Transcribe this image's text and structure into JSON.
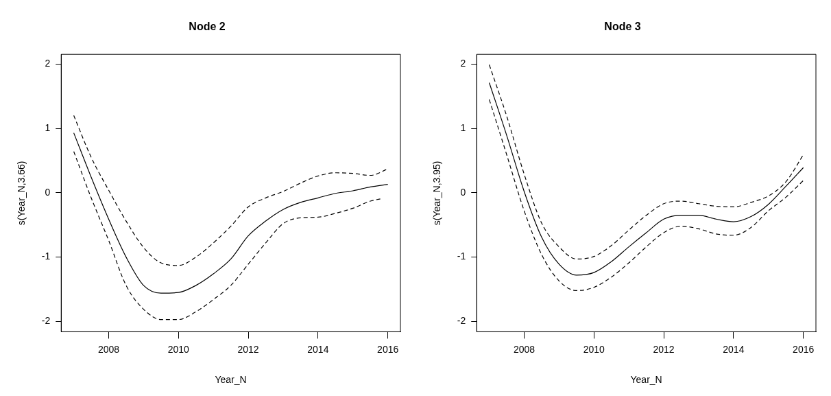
{
  "chart_data": [
    {
      "type": "line",
      "title": "Node 2",
      "xlabel": "Year_N",
      "ylabel": "s(Year_N,3.66)",
      "xlim": [
        2006.64,
        2016.36
      ],
      "ylim": [
        -2.16,
        2.15
      ],
      "xticks": [
        2008,
        2010,
        2012,
        2014,
        2016
      ],
      "yticks": [
        -2,
        -1,
        0,
        1,
        2
      ],
      "grid": false,
      "legend": false,
      "marker": "none",
      "series": [
        {
          "color": "#000000",
          "line_style": "solid",
          "x": [
            2007,
            2007.5,
            2008,
            2008.5,
            2009,
            2009.5,
            2010,
            2010.5,
            2011,
            2011.5,
            2012,
            2012.5,
            2013,
            2013.5,
            2014,
            2014.5,
            2015,
            2015.5,
            2016
          ],
          "values": [
            0.93,
            0.24,
            -0.41,
            -1.0,
            -1.44,
            -1.56,
            -1.55,
            -1.44,
            -1.26,
            -1.03,
            -0.67,
            -0.44,
            -0.26,
            -0.15,
            -0.08,
            -0.01,
            0.03,
            0.09,
            0.13
          ]
        },
        {
          "color": "#000000",
          "line_style": "dashed",
          "x": [
            2007,
            2007.5,
            2008,
            2008.5,
            2009,
            2009.5,
            2010,
            2010.5,
            2011,
            2011.5,
            2012,
            2012.5,
            2013,
            2013.5,
            2014,
            2014.5,
            2015,
            2015.5,
            2016
          ],
          "values": [
            1.2,
            0.55,
            0.04,
            -0.44,
            -0.85,
            -1.09,
            -1.13,
            -1.0,
            -0.78,
            -0.52,
            -0.22,
            -0.08,
            0.02,
            0.15,
            0.26,
            0.31,
            0.3,
            0.27,
            0.37
          ]
        },
        {
          "color": "#000000",
          "line_style": "dashed",
          "x": [
            2007,
            2007.5,
            2008,
            2008.5,
            2009,
            2009.5,
            2010,
            2010.5,
            2011,
            2011.5,
            2012,
            2012.5,
            2013,
            2013.5,
            2014,
            2014.5,
            2015,
            2015.5,
            2015.85
          ],
          "values": [
            0.64,
            -0.08,
            -0.74,
            -1.44,
            -1.81,
            -1.97,
            -1.97,
            -1.85,
            -1.66,
            -1.44,
            -1.11,
            -0.78,
            -0.48,
            -0.39,
            -0.38,
            -0.32,
            -0.24,
            -0.13,
            -0.09
          ]
        }
      ]
    },
    {
      "type": "line",
      "title": "Node 3",
      "xlabel": "Year_N",
      "ylabel": "s(Year_N,3.95)",
      "xlim": [
        2006.64,
        2016.36
      ],
      "ylim": [
        -2.16,
        2.15
      ],
      "xticks": [
        2008,
        2010,
        2012,
        2014,
        2016
      ],
      "yticks": [
        -2,
        -1,
        0,
        1,
        2
      ],
      "grid": false,
      "legend": false,
      "marker": "none",
      "series": [
        {
          "color": "#000000",
          "line_style": "solid",
          "x": [
            2007,
            2007.5,
            2008,
            2008.5,
            2009,
            2009.5,
            2010,
            2010.5,
            2011,
            2011.5,
            2012,
            2012.5,
            2013,
            2013.5,
            2014,
            2014.5,
            2015,
            2015.5,
            2016
          ],
          "values": [
            1.71,
            0.89,
            0.02,
            -0.69,
            -1.11,
            -1.28,
            -1.24,
            -1.07,
            -0.84,
            -0.62,
            -0.41,
            -0.35,
            -0.35,
            -0.41,
            -0.45,
            -0.37,
            -0.18,
            0.1,
            0.39
          ]
        },
        {
          "color": "#000000",
          "line_style": "dashed",
          "x": [
            2007,
            2007.5,
            2008,
            2008.5,
            2009,
            2009.5,
            2010,
            2010.5,
            2011,
            2011.5,
            2012,
            2012.5,
            2013,
            2013.5,
            2014,
            2014.5,
            2015,
            2015.5,
            2016
          ],
          "values": [
            1.99,
            1.19,
            0.29,
            -0.47,
            -0.84,
            -1.03,
            -0.99,
            -0.82,
            -0.58,
            -0.35,
            -0.17,
            -0.13,
            -0.17,
            -0.21,
            -0.22,
            -0.15,
            -0.05,
            0.17,
            0.59
          ]
        },
        {
          "color": "#000000",
          "line_style": "dashed",
          "x": [
            2007,
            2007.5,
            2008,
            2008.5,
            2009,
            2009.5,
            2010,
            2010.5,
            2011,
            2011.5,
            2012,
            2012.5,
            2013,
            2013.5,
            2014,
            2014.5,
            2015,
            2015.5,
            2016
          ],
          "values": [
            1.45,
            0.59,
            -0.28,
            -0.96,
            -1.37,
            -1.52,
            -1.47,
            -1.31,
            -1.09,
            -0.84,
            -0.62,
            -0.52,
            -0.56,
            -0.64,
            -0.66,
            -0.54,
            -0.28,
            -0.07,
            0.19
          ]
        }
      ]
    }
  ]
}
